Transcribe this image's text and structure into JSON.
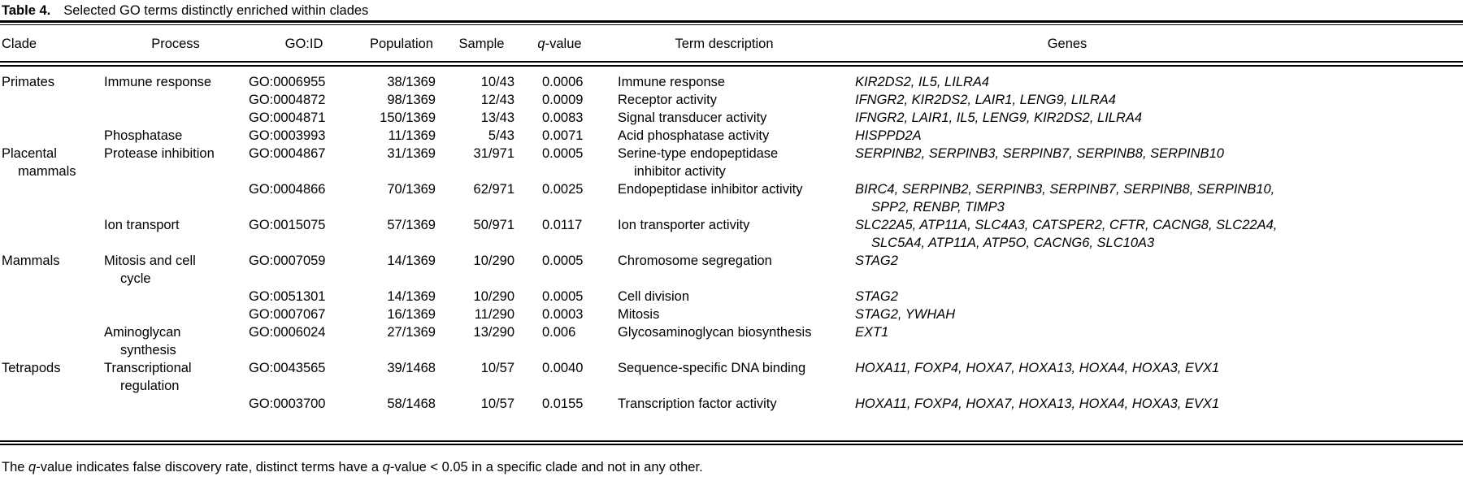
{
  "table": {
    "title": {
      "label": "Table 4.",
      "text": "Selected GO terms distinctly enriched within clades"
    },
    "header": {
      "clade": "Clade",
      "process": "Process",
      "go_id": "GO:ID",
      "population": "Population",
      "sample": "Sample",
      "q_italic": "q",
      "q_rest": "-value",
      "term": "Term description",
      "genes": "Genes"
    },
    "rows": [
      {
        "clade": "Primates",
        "process": "Immune response",
        "go_id": "GO:0006955",
        "population": "38/1369",
        "sample": "10/43",
        "q_value": "0.0006",
        "term": "Immune response",
        "genes": "KIR2DS2, IL5, LILRA4"
      },
      {
        "clade": "",
        "process": "",
        "go_id": "GO:0004872",
        "population": "98/1369",
        "sample": "12/43",
        "q_value": "0.0009",
        "term": "Receptor activity",
        "genes": "IFNGR2, KIR2DS2, LAIR1, LENG9, LILRA4"
      },
      {
        "clade": "",
        "process": "",
        "go_id": "GO:0004871",
        "population": "150/1369",
        "sample": "13/43",
        "q_value": "0.0083",
        "term": "Signal transducer activity",
        "genes": "IFNGR2, LAIR1, IL5, LENG9, KIR2DS2, LILRA4"
      },
      {
        "clade": "",
        "process": "Phosphatase",
        "go_id": "GO:0003993",
        "population": "11/1369",
        "sample": "5/43",
        "q_value": "0.0071",
        "term": "Acid phosphatase activity",
        "genes": "HISPPD2A"
      },
      {
        "clade": "Placental\nmammals",
        "process": "Protease inhibition",
        "go_id": "GO:0004867",
        "population": "31/1369",
        "sample": "31/971",
        "q_value": "0.0005",
        "term": "Serine-type endopeptidase\ninhibitor activity",
        "genes": "SERPINB2, SERPINB3, SERPINB7, SERPINB8, SERPINB10"
      },
      {
        "clade": "",
        "process": "",
        "go_id": "GO:0004866",
        "population": "70/1369",
        "sample": "62/971",
        "q_value": "0.0025",
        "term": "Endopeptidase inhibitor activity",
        "genes": "BIRC4, SERPINB2, SERPINB3, SERPINB7, SERPINB8, SERPINB10,\nSPP2, RENBP, TIMP3"
      },
      {
        "clade": "",
        "process": "Ion transport",
        "go_id": "GO:0015075",
        "population": "57/1369",
        "sample": "50/971",
        "q_value": "0.0117",
        "term": "Ion transporter activity",
        "genes": "SLC22A5, ATP11A, SLC4A3, CATSPER2, CFTR, CACNG8, SLC22A4,\nSLC5A4, ATP11A, ATP5O, CACNG6, SLC10A3"
      },
      {
        "clade": "Mammals",
        "process": "Mitosis and cell\ncycle",
        "go_id": "GO:0007059",
        "population": "14/1369",
        "sample": "10/290",
        "q_value": "0.0005",
        "term": "Chromosome segregation",
        "genes": "STAG2"
      },
      {
        "clade": "",
        "process": "",
        "go_id": "GO:0051301",
        "population": "14/1369",
        "sample": "10/290",
        "q_value": "0.0005",
        "term": "Cell division",
        "genes": "STAG2"
      },
      {
        "clade": "",
        "process": "",
        "go_id": "GO:0007067",
        "population": "16/1369",
        "sample": "11/290",
        "q_value": "0.0003",
        "term": "Mitosis",
        "genes": "STAG2, YWHAH"
      },
      {
        "clade": "",
        "process": "Aminoglycan\nsynthesis",
        "go_id": "GO:0006024",
        "population": "27/1369",
        "sample": "13/290",
        "q_value": "0.006",
        "term": "Glycosaminoglycan biosynthesis",
        "genes": "EXT1"
      },
      {
        "clade": "Tetrapods",
        "process": "Transcriptional\nregulation",
        "go_id": "GO:0043565",
        "population": "39/1468",
        "sample": "10/57",
        "q_value": "0.0040",
        "term": "Sequence-specific DNA binding",
        "genes": "HOXA11, FOXP4, HOXA7, HOXA13, HOXA4, HOXA3, EVX1"
      },
      {
        "clade": "",
        "process": "",
        "go_id": "GO:0003700",
        "population": "58/1468",
        "sample": "10/57",
        "q_value": "0.0155",
        "term": "Transcription factor activity",
        "genes": "HOXA11, FOXP4, HOXA7, HOXA13, HOXA4, HOXA3, EVX1"
      }
    ],
    "footnote_parts": [
      {
        "text": "The ",
        "italic": false
      },
      {
        "text": "q",
        "italic": true
      },
      {
        "text": "-value indicates false discovery rate, distinct terms have a ",
        "italic": false
      },
      {
        "text": "q",
        "italic": true
      },
      {
        "text": "-value < 0.05 in a specific clade and not in any other.",
        "italic": false
      }
    ],
    "colors": {
      "text": "#000000",
      "background": "#ffffff",
      "rule": "#000000"
    }
  }
}
